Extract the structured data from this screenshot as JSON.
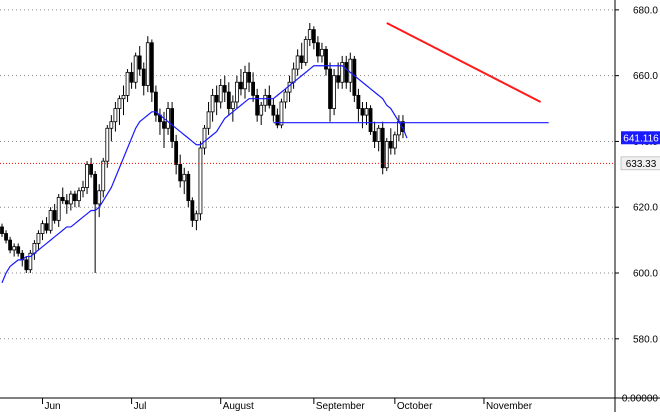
{
  "chart_data": {
    "type": "candlestick",
    "title": "",
    "xlabel": "",
    "ylabel": "",
    "ylim": [
      562,
      683
    ],
    "y_ticks": [
      "580.0",
      "600.0",
      "620.0",
      "640.0",
      "660.0",
      "680.0"
    ],
    "y_tick_values": [
      580,
      600,
      620,
      640,
      660,
      680
    ],
    "y_bottom_label": "0.00000",
    "x_months": [
      "Jun",
      "Jul",
      "August",
      "September",
      "October",
      "November"
    ],
    "x_month_start_index": [
      10,
      32,
      54,
      77,
      97,
      119
    ],
    "grid": true,
    "colors": {
      "candle": "#000000",
      "moving_average": "#1a1aff",
      "support_line": "#1a1aff",
      "trendline": "#ff1a1a",
      "last_price_line": "#ff0000",
      "grid": "#888888"
    },
    "last_price_label": "633.33",
    "moving_average_label": "641.116",
    "last_price": 633.33,
    "moving_average_last": 641.116,
    "support_line_level": 645.7,
    "support_line_start_index": 67,
    "support_line_end_index": 135,
    "trendline_start": {
      "index": 95,
      "value": 676
    },
    "trendline_end": {
      "index": 133,
      "value": 652
    },
    "candles": [
      [
        614,
        615,
        611,
        612
      ],
      [
        612,
        613,
        609,
        610
      ],
      [
        610,
        611,
        606,
        607
      ],
      [
        607,
        609,
        605,
        608
      ],
      [
        608,
        609,
        605,
        606
      ],
      [
        606,
        607,
        602,
        604
      ],
      [
        604,
        605,
        600,
        601
      ],
      [
        601,
        607,
        600,
        606
      ],
      [
        606,
        610,
        604,
        609
      ],
      [
        609,
        613,
        607,
        612
      ],
      [
        612,
        616,
        610,
        615
      ],
      [
        615,
        617,
        612,
        613
      ],
      [
        613,
        620,
        612,
        619
      ],
      [
        619,
        621,
        615,
        616
      ],
      [
        616,
        624,
        614,
        623
      ],
      [
        623,
        626,
        621,
        622
      ],
      [
        622,
        624,
        618,
        621
      ],
      [
        621,
        625,
        619,
        624
      ],
      [
        624,
        625,
        620,
        622
      ],
      [
        622,
        626,
        620,
        625
      ],
      [
        625,
        628,
        623,
        626
      ],
      [
        626,
        634,
        624,
        633
      ],
      [
        633,
        635,
        629,
        630
      ],
      [
        630,
        631,
        600,
        621
      ],
      [
        621,
        627,
        617,
        625
      ],
      [
        625,
        635,
        623,
        634
      ],
      [
        634,
        645,
        632,
        644
      ],
      [
        644,
        648,
        640,
        646
      ],
      [
        646,
        652,
        643,
        650
      ],
      [
        650,
        654,
        645,
        653
      ],
      [
        653,
        657,
        648,
        654
      ],
      [
        654,
        662,
        652,
        661
      ],
      [
        661,
        664,
        656,
        658
      ],
      [
        658,
        667,
        656,
        666
      ],
      [
        666,
        669,
        660,
        662
      ],
      [
        662,
        664,
        654,
        657
      ],
      [
        657,
        672,
        655,
        670
      ],
      [
        670,
        671,
        652,
        655
      ],
      [
        655,
        657,
        646,
        648
      ],
      [
        648,
        650,
        642,
        646
      ],
      [
        646,
        649,
        638,
        644
      ],
      [
        644,
        652,
        642,
        650
      ],
      [
        650,
        652,
        638,
        640
      ],
      [
        640,
        642,
        630,
        633
      ],
      [
        633,
        636,
        626,
        628
      ],
      [
        628,
        632,
        624,
        630
      ],
      [
        630,
        631,
        620,
        622
      ],
      [
        622,
        623,
        614,
        616
      ],
      [
        616,
        619,
        613,
        618
      ],
      [
        618,
        640,
        616,
        638
      ],
      [
        638,
        645,
        636,
        644
      ],
      [
        644,
        652,
        642,
        649
      ],
      [
        649,
        656,
        646,
        654
      ],
      [
        654,
        657,
        648,
        652
      ],
      [
        652,
        659,
        650,
        657
      ],
      [
        657,
        660,
        652,
        655
      ],
      [
        655,
        658,
        648,
        650
      ],
      [
        650,
        654,
        646,
        652
      ],
      [
        652,
        660,
        650,
        658
      ],
      [
        658,
        662,
        654,
        656
      ],
      [
        656,
        663,
        653,
        661
      ],
      [
        661,
        664,
        655,
        658
      ],
      [
        658,
        661,
        652,
        654
      ],
      [
        654,
        656,
        646,
        648
      ],
      [
        648,
        652,
        645,
        651
      ],
      [
        651,
        656,
        649,
        654
      ],
      [
        654,
        657,
        650,
        651
      ],
      [
        651,
        653,
        646,
        648
      ],
      [
        648,
        650,
        644,
        645
      ],
      [
        645,
        653,
        644,
        652
      ],
      [
        652,
        656,
        650,
        655
      ],
      [
        655,
        660,
        652,
        658
      ],
      [
        658,
        664,
        656,
        662
      ],
      [
        662,
        668,
        660,
        666
      ],
      [
        666,
        670,
        662,
        664
      ],
      [
        664,
        672,
        663,
        671
      ],
      [
        671,
        676,
        669,
        674
      ],
      [
        674,
        675,
        668,
        670
      ],
      [
        670,
        672,
        664,
        666
      ],
      [
        666,
        670,
        664,
        668
      ],
      [
        668,
        669,
        660,
        662
      ],
      [
        662,
        664,
        646,
        650
      ],
      [
        650,
        662,
        648,
        660
      ],
      [
        660,
        664,
        656,
        658
      ],
      [
        658,
        666,
        656,
        664
      ],
      [
        664,
        666,
        656,
        658
      ],
      [
        658,
        667,
        655,
        665
      ],
      [
        665,
        666,
        652,
        654
      ],
      [
        654,
        656,
        646,
        650
      ],
      [
        650,
        652,
        644,
        648
      ],
      [
        648,
        652,
        645,
        650
      ],
      [
        650,
        651,
        642,
        643
      ],
      [
        643,
        646,
        638,
        640
      ],
      [
        640,
        645,
        637,
        644
      ],
      [
        644,
        646,
        630,
        632
      ],
      [
        632,
        641,
        631,
        640
      ],
      [
        640,
        644,
        636,
        638
      ],
      [
        638,
        643,
        636,
        642
      ],
      [
        642,
        648,
        640,
        646
      ],
      [
        646,
        648,
        641,
        643
      ]
    ],
    "moving_average": [
      597,
      600,
      602,
      603,
      604,
      604,
      605,
      605,
      606,
      607,
      608,
      609,
      610,
      611,
      612,
      613,
      614,
      614,
      615,
      616,
      617,
      618,
      619,
      619,
      620,
      622,
      624,
      626,
      629,
      632,
      635,
      638,
      641,
      644,
      646,
      647,
      648,
      649,
      649,
      648,
      647,
      646,
      645,
      644,
      643,
      642,
      641,
      640,
      639,
      639,
      640,
      641,
      642,
      643,
      645,
      647,
      648,
      649,
      650,
      651,
      652,
      653,
      653,
      653,
      653,
      653,
      653,
      653,
      654,
      655,
      656,
      657,
      658,
      659,
      660,
      661,
      662,
      663,
      663,
      663,
      663,
      663,
      663,
      663,
      663,
      662,
      661,
      660,
      659,
      658,
      657,
      656,
      655,
      654,
      653,
      651,
      650,
      648,
      646,
      644,
      641
    ]
  }
}
